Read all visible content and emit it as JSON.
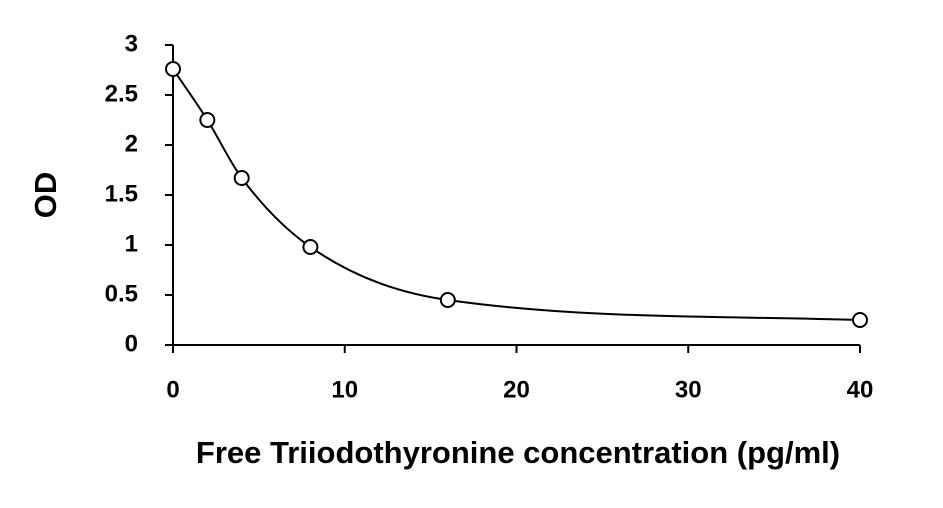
{
  "chart_data": {
    "type": "scatter",
    "x_label": "Free Triiodothyronine concentration (pg/ml)",
    "y_label": "OD",
    "series": [
      {
        "x": [
          0,
          2,
          4,
          8,
          16,
          40
        ],
        "values": [
          2.76,
          2.25,
          1.67,
          0.98,
          0.45,
          0.25
        ],
        "color": "#000000"
      }
    ],
    "curve": "smooth",
    "xlim": [
      0,
      40
    ],
    "xticks": [
      0,
      10,
      20,
      30,
      40
    ],
    "ylim": [
      0,
      3
    ],
    "yticks": [
      0,
      0.5,
      1,
      1.5,
      2,
      2.5,
      3
    ]
  }
}
